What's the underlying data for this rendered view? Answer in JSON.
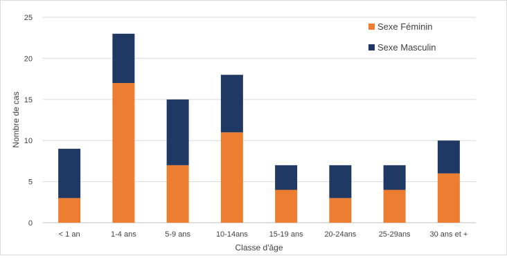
{
  "chart_data": {
    "type": "bar",
    "stacked": true,
    "title": "",
    "xlabel": "Classe d'âge",
    "ylabel": "Nombre de cas",
    "categories": [
      "< 1 an",
      "1-4 ans",
      "5-9 ans",
      "10-14ans",
      "15-19 ans",
      "20-24ans",
      "25-29ans",
      "30 ans et +"
    ],
    "series": [
      {
        "name": "Sexe Féminin",
        "color": "#ED7D31",
        "values": [
          3,
          17,
          7,
          11,
          4,
          3,
          4,
          6
        ]
      },
      {
        "name": "Sexe Masculin",
        "color": "#203864",
        "values": [
          6,
          6,
          8,
          7,
          3,
          4,
          3,
          4
        ]
      }
    ],
    "ylim": [
      0,
      25
    ],
    "yticks": [
      0,
      5,
      10,
      15,
      20,
      25
    ],
    "grid": true,
    "legend_position": "top-right"
  }
}
